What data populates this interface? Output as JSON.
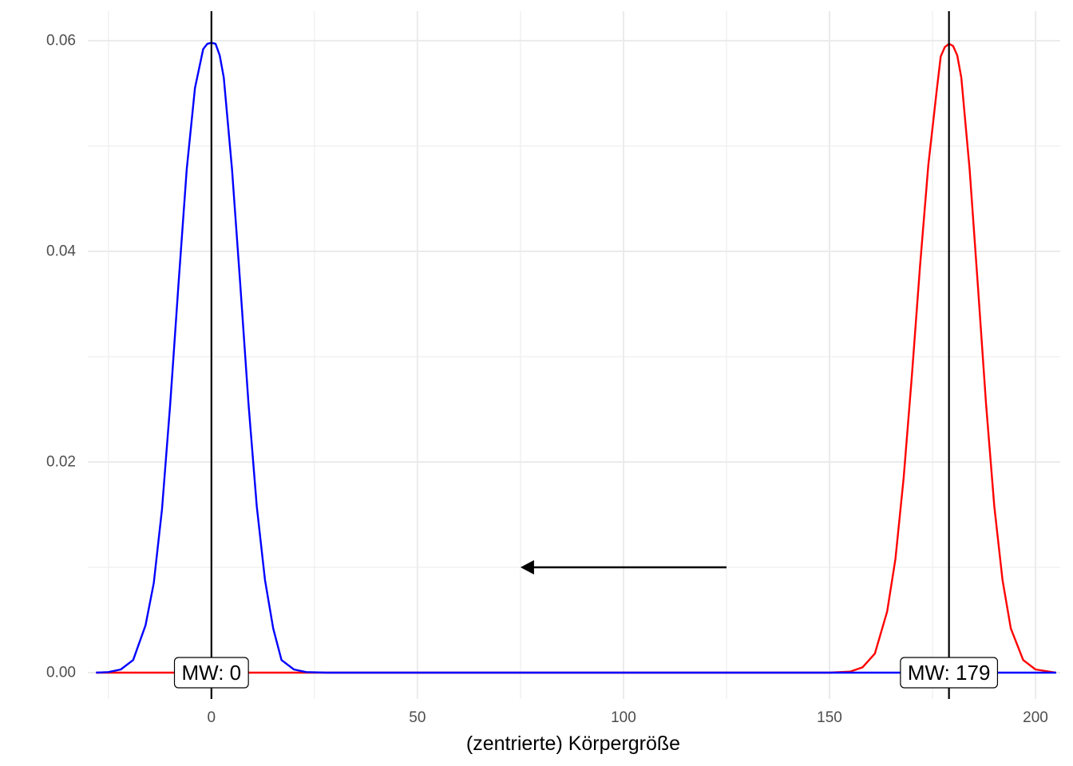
{
  "chart_data": {
    "type": "line",
    "title": "",
    "xlabel": "(zentrierte) Körpergröße",
    "ylabel": "",
    "xlim": [
      -30,
      206
    ],
    "ylim": [
      -0.0025,
      0.0628
    ],
    "grid": true,
    "x_ticks": [
      0,
      50,
      100,
      150,
      200
    ],
    "x_tick_labels": [
      "0",
      "50",
      "100",
      "150",
      "200"
    ],
    "y_ticks": [
      0,
      0.02,
      0.04,
      0.06
    ],
    "y_tick_labels": [
      "0.00",
      "0.02",
      "0.04",
      "0.06"
    ],
    "colors": {
      "original": "#ff0000",
      "centered": "#0000ff",
      "reference": "#000000"
    },
    "series": [
      {
        "color": "#ff0000",
        "x": [
          -28,
          150,
          155,
          158,
          161,
          164,
          166,
          168,
          170,
          172,
          174,
          176,
          177,
          178,
          179,
          180,
          181,
          182,
          184,
          186,
          188,
          190,
          192,
          194,
          197,
          200,
          205
        ],
        "y": [
          0,
          0,
          0.0001,
          0.0005,
          0.0018,
          0.0058,
          0.0108,
          0.0185,
          0.0282,
          0.0387,
          0.0482,
          0.0552,
          0.0585,
          0.0594,
          0.0597,
          0.0595,
          0.0586,
          0.0565,
          0.0478,
          0.0368,
          0.0255,
          0.0158,
          0.0088,
          0.0042,
          0.0012,
          0.0003,
          0
        ]
      },
      {
        "color": "#0000ff",
        "x": [
          -28,
          -25,
          -22,
          -19,
          -16,
          -14,
          -12,
          -10,
          -8,
          -6,
          -4,
          -2,
          -1,
          0,
          1,
          2,
          3,
          5,
          7,
          9,
          11,
          13,
          15,
          17,
          20,
          23,
          28,
          205
        ],
        "y": [
          0,
          5e-05,
          0.0003,
          0.0012,
          0.0045,
          0.0085,
          0.0155,
          0.0255,
          0.0368,
          0.0478,
          0.0555,
          0.0592,
          0.0597,
          0.0598,
          0.0597,
          0.0586,
          0.0565,
          0.0478,
          0.0368,
          0.0255,
          0.0158,
          0.0088,
          0.0042,
          0.0012,
          0.0003,
          5e-05,
          0,
          0
        ]
      }
    ],
    "reference_lines": [
      {
        "x": 0,
        "label": "MW: 0"
      },
      {
        "x": 179,
        "label": "MW: 179"
      }
    ],
    "arrow": {
      "x_from": 125,
      "x_to": 75,
      "y": 0.01
    }
  }
}
